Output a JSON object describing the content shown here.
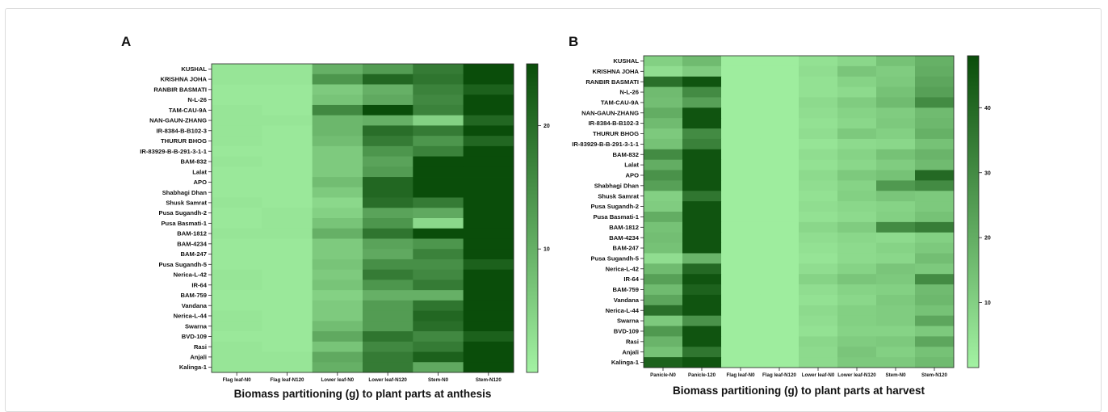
{
  "panels": {
    "a": {
      "letter": "A"
    },
    "b": {
      "letter": "B"
    }
  },
  "chart_data": [
    {
      "type": "heatmap",
      "title": "Biomass partitioning (g) to plant parts at anthesis",
      "xlabel": "",
      "ylabel": "",
      "columns": [
        "Flag leaf-N0",
        "Flag leaf-N120",
        "Lower leaf-N0",
        "Lower leaf-N120",
        "Stem-N0",
        "Stem-N120"
      ],
      "rows": [
        "KUSHAL",
        "KRISHNA JOHA",
        "RANBIR BASMATI",
        "N-L-26",
        "TAM-CAU-9A",
        "NAN-GAUN-ZHANG",
        "IR-8384-B-B102-3",
        "THURUR BHOG",
        "IR-83929-B-B-291-3-1-1",
        "BAM-832",
        "Lalat",
        "APO",
        "Shabhagi Dhan",
        "Shusk Samrat",
        "Pusa Sugandh-2",
        "Pusa Basmati-1",
        "BAM-1812",
        "BAM-4234",
        "BAM-247",
        "Pusa Sugandh-5",
        "Nerica-L-42",
        "IR-64",
        "BAM-759",
        "Vandana",
        "Nerica-L-44",
        "Swarna",
        "BVD-109",
        "Rasi",
        "Anjali",
        "Kalinga-1"
      ],
      "values": [
        [
          2,
          2,
          10,
          13,
          18,
          25
        ],
        [
          2,
          2,
          14,
          21,
          19,
          25
        ],
        [
          1.5,
          1.5,
          6,
          10,
          17,
          22
        ],
        [
          1.5,
          1.5,
          7,
          11,
          16,
          25
        ],
        [
          2,
          1.5,
          16,
          25,
          17,
          25
        ],
        [
          2,
          2,
          9,
          10,
          5,
          21
        ],
        [
          2,
          1.5,
          9,
          20,
          18,
          25
        ],
        [
          2,
          1.5,
          8,
          18,
          14,
          21
        ],
        [
          1.5,
          1.5,
          6,
          14,
          17,
          25
        ],
        [
          2,
          1.5,
          6,
          12,
          25,
          25
        ],
        [
          1.5,
          1.5,
          6,
          13,
          25,
          25
        ],
        [
          1.5,
          1.5,
          8,
          21,
          25,
          25
        ],
        [
          1.5,
          1.5,
          6,
          21,
          25,
          25
        ],
        [
          2,
          1.5,
          4,
          20,
          18,
          25
        ],
        [
          1.5,
          2,
          5,
          12,
          11,
          25
        ],
        [
          1.5,
          2,
          7,
          14,
          4,
          25
        ],
        [
          2,
          2,
          10,
          19,
          25,
          25
        ],
        [
          1.5,
          1.5,
          6,
          12,
          14,
          25
        ],
        [
          1.5,
          1.5,
          6,
          11,
          17,
          25
        ],
        [
          1.5,
          1.5,
          7,
          15,
          15,
          22
        ],
        [
          2,
          1.5,
          6,
          18,
          16,
          25
        ],
        [
          2,
          1.5,
          7,
          14,
          18,
          25
        ],
        [
          1.5,
          1.5,
          5,
          10,
          10,
          25
        ],
        [
          1.5,
          1.5,
          6,
          13,
          19,
          25
        ],
        [
          2,
          1.5,
          6,
          13,
          21,
          25
        ],
        [
          2,
          1.5,
          8,
          13,
          20,
          25
        ],
        [
          1.5,
          1.5,
          11,
          19,
          16,
          22
        ],
        [
          2,
          1.5,
          7,
          16,
          18,
          25
        ],
        [
          2,
          2,
          11,
          18,
          22,
          25
        ],
        [
          2,
          2,
          10,
          18,
          11,
          25
        ]
      ],
      "color_scale": {
        "min": 0,
        "max": 25,
        "low_color": "#a3f2a3",
        "high_color": "#0a4d0a",
        "ticks": [
          10,
          20
        ]
      }
    },
    {
      "type": "heatmap",
      "title": "Biomass partitioning (g) to plant parts at harvest",
      "xlabel": "",
      "ylabel": "",
      "columns": [
        "Panicle-N0",
        "Panicle-120",
        "Flag leaf-N0",
        "Flag leaf-N120",
        "Lower leaf-N0",
        "Lower leaf-N120",
        "Stem-N0",
        "Stem-N120"
      ],
      "rows": [
        "KUSHAL",
        "KRISHNA JOHA",
        "RANBIR BASMATI",
        "N-L-26",
        "TAM-CAU-9A",
        "NAN-GAUN-ZHANG",
        "IR-8384-B-B102-3",
        "THURUR BHOG",
        "IR-83929-B-B-291-3-1-1",
        "BAM-832",
        "Lalat",
        "APO",
        "Shabhagi Dhan",
        "Shusk Samrat",
        "Pusa Sugandh-2",
        "Pusa Basmati-1",
        "BAM-1812",
        "BAM-4234",
        "BAM-247",
        "Pusa Sugandh-5",
        "Nerica-L-42",
        "IR-64",
        "BAM-759",
        "Vandana",
        "Nerica-L-44",
        "Swarna",
        "BVD-109",
        "Rasi",
        "Anjali",
        "Kalinga-1"
      ],
      "values": [
        [
          10,
          16,
          1.5,
          1.5,
          5,
          8,
          14,
          19
        ],
        [
          6,
          11,
          1.5,
          1.5,
          6,
          13,
          11,
          20
        ],
        [
          38,
          46,
          1.5,
          1.5,
          5,
          9,
          12,
          22
        ],
        [
          16,
          30,
          1.5,
          1.5,
          5,
          7,
          14,
          24
        ],
        [
          15,
          24,
          1.5,
          1.5,
          7,
          11,
          16,
          30
        ],
        [
          20,
          46,
          1.5,
          1.5,
          6,
          9,
          11,
          16
        ],
        [
          16,
          46,
          1.5,
          1.5,
          5,
          8,
          12,
          17
        ],
        [
          12,
          30,
          1.5,
          1.5,
          6,
          12,
          10,
          19
        ],
        [
          14,
          33,
          1.5,
          1.5,
          4,
          7,
          8,
          14
        ],
        [
          30,
          46,
          1.5,
          1.5,
          6,
          9,
          14,
          18
        ],
        [
          20,
          46,
          1.5,
          1.5,
          5,
          8,
          11,
          16
        ],
        [
          28,
          46,
          1.5,
          1.5,
          7,
          12,
          14,
          40
        ],
        [
          24,
          46,
          1.5,
          1.5,
          6,
          9,
          26,
          30
        ],
        [
          10,
          36,
          1.5,
          1.5,
          5,
          10,
          13,
          12
        ],
        [
          11,
          46,
          1.5,
          1.5,
          6,
          8,
          9,
          12
        ],
        [
          20,
          46,
          1.5,
          1.5,
          5,
          7,
          10,
          14
        ],
        [
          14,
          46,
          1.5,
          1.5,
          8,
          11,
          30,
          34
        ],
        [
          15,
          46,
          1.5,
          1.5,
          6,
          8,
          7,
          10
        ],
        [
          14,
          46,
          1.5,
          1.5,
          5,
          7,
          9,
          12
        ],
        [
          6,
          18,
          1.5,
          1.5,
          4,
          7,
          8,
          15
        ],
        [
          16,
          40,
          1.5,
          1.5,
          6,
          9,
          13,
          12
        ],
        [
          24,
          46,
          1.5,
          1.5,
          9,
          13,
          12,
          30
        ],
        [
          16,
          42,
          1.5,
          1.5,
          6,
          9,
          10,
          16
        ],
        [
          22,
          46,
          1.5,
          1.5,
          5,
          8,
          12,
          17
        ],
        [
          38,
          46,
          1.5,
          1.5,
          7,
          10,
          11,
          14
        ],
        [
          12,
          28,
          1.5,
          1.5,
          6,
          10,
          11,
          22
        ],
        [
          26,
          46,
          1.5,
          1.5,
          5,
          9,
          9,
          12
        ],
        [
          18,
          46,
          1.5,
          1.5,
          8,
          11,
          12,
          22
        ],
        [
          14,
          36,
          1.5,
          1.5,
          7,
          13,
          10,
          14
        ],
        [
          42,
          46,
          1.5,
          1.5,
          7,
          12,
          12,
          16
        ]
      ],
      "color_scale": {
        "min": 0,
        "max": 48,
        "low_color": "#a3f2a3",
        "high_color": "#0a4d0a",
        "ticks": [
          10,
          20,
          30,
          40
        ]
      }
    }
  ]
}
